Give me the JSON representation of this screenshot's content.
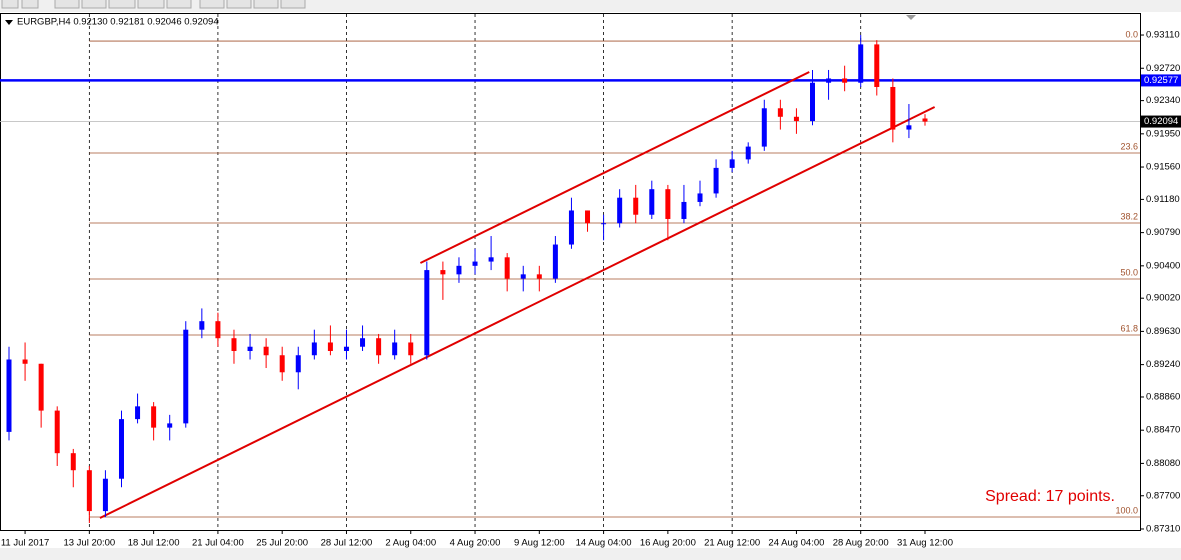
{
  "chart_data": {
    "type": "candlestick",
    "header": "EURGBP,H4  0.92130 0.92181 0.92046 0.92094",
    "categories": [
      null,
      "11 Jul 2017",
      null,
      null,
      null,
      "13 Jul 20:00",
      null,
      null,
      null,
      "18 Jul 12:00",
      null,
      null,
      null,
      "21 Jul 04:00",
      null,
      null,
      null,
      "25 Jul 20:00",
      null,
      null,
      null,
      "28 Jul 12:00",
      null,
      null,
      null,
      "2 Aug 04:00",
      null,
      null,
      null,
      "4 Aug 20:00",
      null,
      null,
      null,
      "9 Aug 12:00",
      null,
      null,
      null,
      "14 Aug 04:00",
      null,
      null,
      null,
      "16 Aug 20:00",
      null,
      null,
      null,
      "21 Aug 12:00",
      null,
      null,
      null,
      "24 Aug 04:00",
      null,
      null,
      null,
      "28 Aug 20:00",
      null,
      null,
      null,
      "31 Aug 12:00"
    ],
    "open": [
      0.8845,
      0.893,
      0.8925,
      0.887,
      0.882,
      0.88,
      0.8752,
      0.879,
      0.886,
      0.8875,
      0.885,
      0.8855,
      0.8965,
      0.8975,
      0.8955,
      0.894,
      0.8945,
      0.8935,
      0.8915,
      0.8935,
      0.895,
      0.894,
      0.8945,
      0.8955,
      0.8935,
      0.895,
      0.8935,
      0.9035,
      0.903,
      0.904,
      0.9045,
      0.905,
      0.9025,
      0.903,
      0.9025,
      0.9065,
      0.9105,
      0.909,
      0.909,
      0.912,
      0.91,
      0.913,
      0.9095,
      0.9115,
      0.9125,
      0.9155,
      0.9165,
      0.918,
      0.9225,
      0.9215,
      0.921,
      0.9255,
      0.926,
      0.9255,
      0.93,
      0.925,
      0.92,
      0.9213
    ],
    "high": [
      0.8945,
      0.895,
      0.8925,
      0.8875,
      0.8825,
      0.8805,
      0.88,
      0.887,
      0.889,
      0.888,
      0.8865,
      0.8975,
      0.899,
      0.8985,
      0.8965,
      0.896,
      0.8955,
      0.8945,
      0.8945,
      0.8965,
      0.897,
      0.8965,
      0.897,
      0.896,
      0.8965,
      0.896,
      0.9045,
      0.9045,
      0.905,
      0.906,
      0.9075,
      0.9055,
      0.904,
      0.904,
      0.9075,
      0.912,
      0.9105,
      0.91,
      0.913,
      0.9135,
      0.914,
      0.9135,
      0.9135,
      0.914,
      0.9165,
      0.9175,
      0.9185,
      0.9235,
      0.9235,
      0.9225,
      0.927,
      0.927,
      0.9275,
      0.9311,
      0.9305,
      0.926,
      0.923,
      0.92181
    ],
    "low": [
      0.8835,
      0.8905,
      0.885,
      0.8805,
      0.878,
      0.8738,
      0.8745,
      0.878,
      0.8855,
      0.8835,
      0.8835,
      0.885,
      0.8955,
      0.8945,
      0.8925,
      0.893,
      0.892,
      0.8905,
      0.8895,
      0.893,
      0.8935,
      0.893,
      0.894,
      0.8925,
      0.893,
      0.8925,
      0.893,
      0.9,
      0.902,
      0.903,
      0.9035,
      0.901,
      0.901,
      0.901,
      0.902,
      0.906,
      0.908,
      0.907,
      0.9085,
      0.909,
      0.9095,
      0.907,
      0.909,
      0.911,
      0.912,
      0.915,
      0.916,
      0.9175,
      0.92,
      0.9195,
      0.9205,
      0.9235,
      0.9245,
      0.925,
      0.924,
      0.9185,
      0.919,
      0.92046
    ],
    "close": [
      0.893,
      0.8925,
      0.887,
      0.882,
      0.88,
      0.8752,
      0.879,
      0.886,
      0.8875,
      0.885,
      0.8855,
      0.8965,
      0.8975,
      0.8955,
      0.894,
      0.8945,
      0.8935,
      0.8915,
      0.8935,
      0.895,
      0.894,
      0.8945,
      0.8955,
      0.8935,
      0.895,
      0.8935,
      0.9035,
      0.903,
      0.904,
      0.9045,
      0.905,
      0.9025,
      0.903,
      0.9025,
      0.9065,
      0.9105,
      0.909,
      0.909,
      0.912,
      0.91,
      0.913,
      0.9095,
      0.9115,
      0.9125,
      0.9155,
      0.9165,
      0.918,
      0.9225,
      0.9215,
      0.921,
      0.9255,
      0.926,
      0.9255,
      0.93,
      0.925,
      0.92,
      0.9205,
      0.92094
    ],
    "up_color": "#0000ff",
    "down_color": "#ff0000",
    "ylim": [
      0.87298,
      0.93357
    ],
    "yticks": [
      {
        "value": 0.9311,
        "label": "0.93110"
      },
      {
        "value": 0.9272,
        "label": "0.92720"
      },
      {
        "value": 0.9234,
        "label": "0.92340"
      },
      {
        "value": 0.9195,
        "label": "0.91950"
      },
      {
        "value": 0.9156,
        "label": "0.91560"
      },
      {
        "value": 0.9118,
        "label": "0.91180"
      },
      {
        "value": 0.9079,
        "label": "0.90790"
      },
      {
        "value": 0.904,
        "label": "0.90400"
      },
      {
        "value": 0.9002,
        "label": "0.90020"
      },
      {
        "value": 0.8963,
        "label": "0.89630"
      },
      {
        "value": 0.8924,
        "label": "0.89240"
      },
      {
        "value": 0.8886,
        "label": "0.88860"
      },
      {
        "value": 0.8847,
        "label": "0.88470"
      },
      {
        "value": 0.8808,
        "label": "0.88080"
      },
      {
        "value": 0.877,
        "label": "0.87700"
      },
      {
        "value": 0.8731,
        "label": "0.87310"
      }
    ],
    "grid": true,
    "hline": {
      "value": 0.92577,
      "label": "0.92577",
      "color": "#0000ff"
    },
    "current_price": {
      "value": 0.92094,
      "label": "0.92094"
    },
    "fibonacci": [
      {
        "label": "0.0",
        "price": 0.93039
      },
      {
        "label": "23.6",
        "price": 0.91725
      },
      {
        "label": "38.2",
        "price": 0.90903
      },
      {
        "label": "50.0",
        "price": 0.90245
      },
      {
        "label": "61.8",
        "price": 0.89588
      },
      {
        "label": "100.0",
        "price": 0.87451
      }
    ],
    "fib_color": "#a0522d",
    "channel": [
      {
        "from": [
          25.6,
          0.90433
        ],
        "to": [
          49.8,
          0.92676
        ]
      },
      {
        "from": [
          5.66,
          0.87439
        ],
        "to": [
          57.6,
          0.92265
        ]
      }
    ],
    "channel_color": "#e00000",
    "annotation": "Spread: 17 points."
  }
}
